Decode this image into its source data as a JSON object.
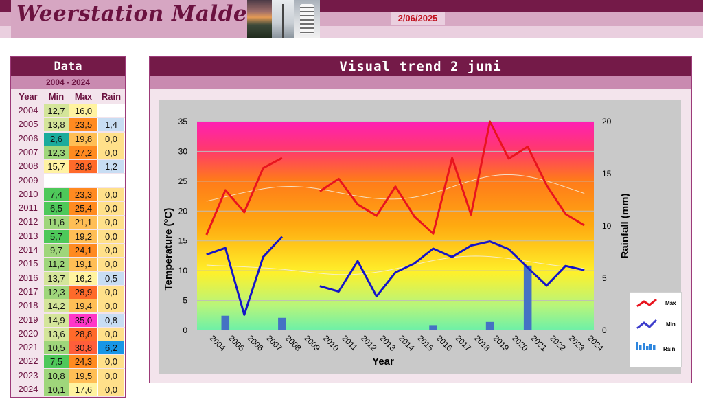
{
  "header": {
    "site_title": "Weerstation Malderen",
    "date": "2/06/2025"
  },
  "data_panel": {
    "title": "Data",
    "range": "2004 - 2024",
    "columns": [
      "Year",
      "Min",
      "Max",
      "Rain"
    ],
    "rows": [
      {
        "year": "2004",
        "min": "12,7",
        "max": "16,0",
        "rain": ""
      },
      {
        "year": "2005",
        "min": "13,8",
        "max": "23,5",
        "rain": "1,4"
      },
      {
        "year": "2006",
        "min": "2,6",
        "max": "19,8",
        "rain": "0,0"
      },
      {
        "year": "2007",
        "min": "12,3",
        "max": "27,2",
        "rain": "0,0"
      },
      {
        "year": "2008",
        "min": "15,7",
        "max": "28,9",
        "rain": "1,2"
      },
      {
        "year": "2009",
        "min": "",
        "max": "",
        "rain": ""
      },
      {
        "year": "2010",
        "min": "7,4",
        "max": "23,3",
        "rain": "0,0"
      },
      {
        "year": "2011",
        "min": "6,5",
        "max": "25,4",
        "rain": "0,0"
      },
      {
        "year": "2012",
        "min": "11,6",
        "max": "21,1",
        "rain": "0,0"
      },
      {
        "year": "2013",
        "min": "5,7",
        "max": "19,2",
        "rain": "0,0"
      },
      {
        "year": "2014",
        "min": "9,7",
        "max": "24,1",
        "rain": "0,0"
      },
      {
        "year": "2015",
        "min": "11,2",
        "max": "19,1",
        "rain": "0,0"
      },
      {
        "year": "2016",
        "min": "13,7",
        "max": "16,2",
        "rain": "0,5"
      },
      {
        "year": "2017",
        "min": "12,3",
        "max": "28,9",
        "rain": "0,0"
      },
      {
        "year": "2018",
        "min": "14,2",
        "max": "19,4",
        "rain": "0,0"
      },
      {
        "year": "2019",
        "min": "14,9",
        "max": "35,0",
        "rain": "0,8"
      },
      {
        "year": "2020",
        "min": "13,6",
        "max": "28,8",
        "rain": "0,0"
      },
      {
        "year": "2021",
        "min": "10,5",
        "max": "30,8",
        "rain": "6,2"
      },
      {
        "year": "2022",
        "min": "7,5",
        "max": "24,3",
        "rain": "0,0"
      },
      {
        "year": "2023",
        "min": "10,8",
        "max": "19,5",
        "rain": "0,0"
      },
      {
        "year": "2024",
        "min": "10,1",
        "max": "17,6",
        "rain": "0,0"
      }
    ]
  },
  "chart_data": {
    "type": "line",
    "title": "Visual trend 2 juni",
    "xlabel": "Year",
    "ylabel": "Temperature (°C)",
    "y2label": "Rainfall (mm)",
    "ylim": [
      0,
      35
    ],
    "y2lim": [
      0,
      20
    ],
    "yticks": [
      0,
      5,
      10,
      15,
      20,
      25,
      30,
      35
    ],
    "y2ticks": [
      0,
      5,
      10,
      15,
      20
    ],
    "x": [
      2004,
      2005,
      2006,
      2007,
      2008,
      2009,
      2010,
      2011,
      2012,
      2013,
      2014,
      2015,
      2016,
      2017,
      2018,
      2019,
      2020,
      2021,
      2022,
      2023,
      2024
    ],
    "series": [
      {
        "name": "Max",
        "axis": "left",
        "color": "#e8141e",
        "values": [
          16.0,
          23.5,
          19.8,
          27.2,
          28.9,
          null,
          23.3,
          25.4,
          21.1,
          19.2,
          24.1,
          19.1,
          16.2,
          28.9,
          19.4,
          35.0,
          28.8,
          30.8,
          24.3,
          19.5,
          17.6
        ]
      },
      {
        "name": "Min",
        "axis": "left",
        "color": "#1414c8",
        "values": [
          12.7,
          13.8,
          2.6,
          12.3,
          15.7,
          null,
          7.4,
          6.5,
          11.6,
          5.7,
          9.7,
          11.2,
          13.7,
          12.3,
          14.2,
          14.9,
          13.6,
          10.5,
          7.5,
          10.8,
          10.1
        ]
      },
      {
        "name": "Rain",
        "axis": "right",
        "type": "bar",
        "color": "#4472c4",
        "values": [
          null,
          1.4,
          0.0,
          0.0,
          1.2,
          null,
          0.0,
          0.0,
          0.0,
          0.0,
          0.0,
          0.0,
          0.5,
          0.0,
          0.0,
          0.8,
          0.0,
          6.2,
          0.0,
          0.0,
          0.0
        ]
      }
    ],
    "legend": {
      "position": "right",
      "entries": [
        "Max",
        "Min",
        "Rain"
      ]
    },
    "grid": true
  }
}
